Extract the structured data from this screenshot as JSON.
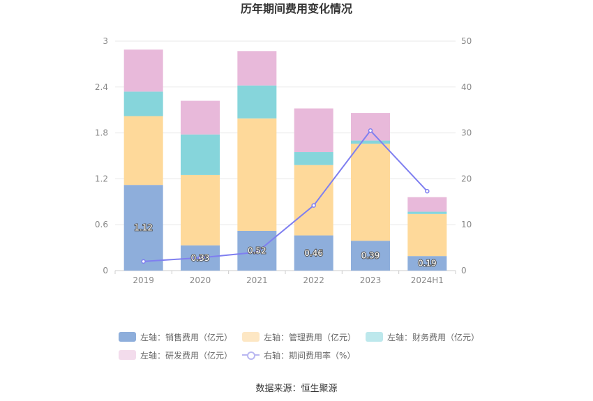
{
  "chart_data": {
    "type": "bar",
    "stacked": true,
    "title": "历年期间费用变化情况",
    "categories": [
      "2019",
      "2020",
      "2021",
      "2022",
      "2023",
      "2024H1"
    ],
    "y_left": {
      "ticks": [
        "0",
        "0.6",
        "1.2",
        "1.8",
        "2.4",
        "3"
      ],
      "range": [
        0,
        3
      ]
    },
    "y_right": {
      "ticks": [
        "0",
        "10",
        "20",
        "30",
        "40",
        "50"
      ],
      "range": [
        0,
        50
      ]
    },
    "grid": true,
    "legend_position": "bottom",
    "series": [
      {
        "name": "左轴：销售费用（亿元）",
        "axis": "left",
        "color": "#8eaedb",
        "values": [
          1.12,
          0.33,
          0.52,
          0.46,
          0.39,
          0.19
        ],
        "labels": [
          "1.12",
          "0.33",
          "0.52",
          "0.46",
          "0.39",
          "0.19"
        ]
      },
      {
        "name": "左轴：管理费用（亿元）",
        "axis": "left",
        "color": "#fed99a",
        "legend_color": "#fde7c4",
        "values": [
          0.9,
          0.92,
          1.47,
          0.92,
          1.27,
          0.55
        ]
      },
      {
        "name": "左轴：财务费用（亿元）",
        "axis": "left",
        "color": "#86d5db",
        "legend_color": "#bde8ec",
        "values": [
          0.32,
          0.53,
          0.43,
          0.17,
          0.04,
          0.03
        ]
      },
      {
        "name": "左轴：研发费用（亿元）",
        "axis": "left",
        "color": "#e8b9da",
        "legend_color": "#f3dcec",
        "values": [
          0.55,
          0.44,
          0.45,
          0.57,
          0.36,
          0.19
        ]
      },
      {
        "name": "右轴：期间费用率（%）",
        "axis": "right",
        "type": "line",
        "color": "#7f7ff0",
        "values": [
          2.0,
          2.8,
          4.0,
          14.2,
          30.5,
          17.3
        ]
      }
    ]
  },
  "source": "数据来源：恒生聚源"
}
